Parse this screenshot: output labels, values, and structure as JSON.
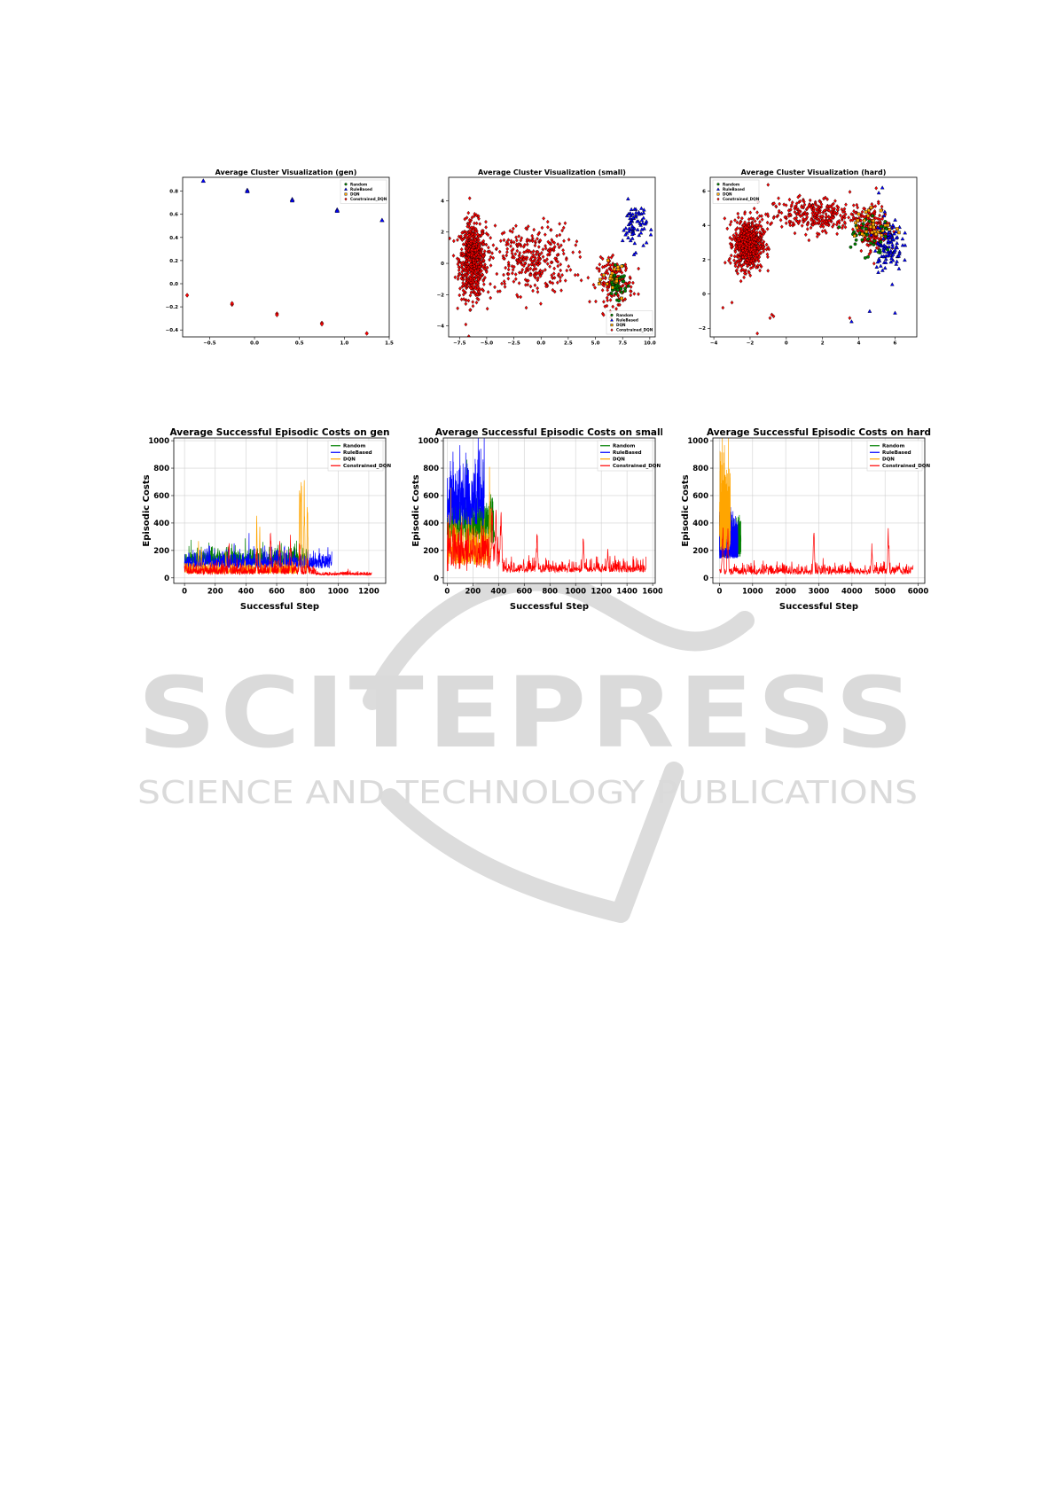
{
  "watermark": {
    "main": "SCITEPRESS",
    "sub": "SCIENCE AND TECHNOLOGY PUBLICATIONS",
    "color": "#d8d8d8"
  },
  "colors": {
    "Random": "#008000",
    "RuleBased": "#0000ff",
    "DQN": "#ffa500",
    "Constrained_DQN": "#ff0000"
  },
  "chart_data": [
    {
      "type": "scatter",
      "title": "Average Cluster Visualization (gen)",
      "xlim": [
        -0.8,
        1.5
      ],
      "ylim": [
        -0.46,
        0.92
      ],
      "xticks": [
        -0.5,
        0.0,
        0.5,
        1.0,
        1.5
      ],
      "xtick_labels": [
        "−0.5",
        "0.0",
        "0.5",
        "1.0",
        "1.5"
      ],
      "yticks": [
        -0.4,
        -0.2,
        0.0,
        0.2,
        0.4,
        0.6,
        0.8
      ],
      "ytick_labels": [
        "−0.4",
        "−0.2",
        "0.0",
        "0.2",
        "0.4",
        "0.6",
        "0.8"
      ],
      "legend": {
        "position": "top-right",
        "entries": [
          "Random",
          "RuleBased",
          "DQN",
          "Constrained_DQN"
        ]
      },
      "series": [
        {
          "name": "RuleBased",
          "marker": "triangle",
          "points": [
            [
              -0.57,
              0.89
            ],
            [
              -0.08,
              0.81
            ],
            [
              -0.08,
              0.8
            ],
            [
              0.42,
              0.73
            ],
            [
              0.42,
              0.72
            ],
            [
              0.92,
              0.64
            ],
            [
              0.92,
              0.63
            ],
            [
              1.42,
              0.55
            ]
          ]
        },
        {
          "name": "Constrained_DQN",
          "marker": "diamond",
          "points": [
            [
              -0.75,
              -0.1
            ],
            [
              -0.25,
              -0.18
            ],
            [
              -0.25,
              -0.17
            ],
            [
              0.25,
              -0.26
            ],
            [
              0.25,
              -0.27
            ],
            [
              0.75,
              -0.34
            ],
            [
              0.75,
              -0.35
            ],
            [
              1.25,
              -0.43
            ]
          ]
        }
      ]
    },
    {
      "type": "scatter",
      "title": "Average Cluster Visualization (small)",
      "xlim": [
        -8.5,
        10.5
      ],
      "ylim": [
        -4.7,
        5.5
      ],
      "xticks": [
        -7.5,
        -5.0,
        -2.5,
        0.0,
        2.5,
        5.0,
        7.5,
        10.0
      ],
      "xtick_labels": [
        "−7.5",
        "−5.0",
        "−2.5",
        "0.0",
        "2.5",
        "5.0",
        "7.5",
        "10.0"
      ],
      "yticks": [
        -4,
        -2,
        0,
        2,
        4
      ],
      "ytick_labels": [
        "−4",
        "−2",
        "0",
        "2",
        "4"
      ],
      "legend": {
        "position": "bottom-right",
        "entries": [
          "Random",
          "RuleBased",
          "DQN",
          "Constrained_DQN"
        ]
      },
      "clusters": [
        {
          "series": "Constrained_DQN",
          "center": [
            -6.3,
            0.2
          ],
          "spread": [
            1.1,
            2.2
          ],
          "count": 650
        },
        {
          "series": "Constrained_DQN",
          "center": [
            -1.0,
            0.3
          ],
          "spread": [
            3.5,
            2.0
          ],
          "count": 320
        },
        {
          "series": "Constrained_DQN",
          "center": [
            6.8,
            -1.2
          ],
          "spread": [
            1.5,
            1.3
          ],
          "count": 180
        },
        {
          "series": "RuleBased",
          "center": [
            8.6,
            2.4
          ],
          "spread": [
            1.0,
            1.4
          ],
          "count": 70
        },
        {
          "series": "Random",
          "center": [
            7.0,
            -1.3
          ],
          "spread": [
            0.8,
            0.8
          ],
          "count": 40
        },
        {
          "series": "DQN",
          "center": [
            6.8,
            -1.0
          ],
          "spread": [
            1.0,
            0.9
          ],
          "count": 20
        }
      ]
    },
    {
      "type": "scatter",
      "title": "Average Cluster Visualization (hard)",
      "xlim": [
        -4.2,
        7.2
      ],
      "ylim": [
        -2.5,
        6.8
      ],
      "xticks": [
        -4,
        -2,
        0,
        2,
        4,
        6
      ],
      "xtick_labels": [
        "−4",
        "−2",
        "0",
        "2",
        "4",
        "6"
      ],
      "yticks": [
        -2,
        0,
        2,
        4,
        6
      ],
      "ytick_labels": [
        "−2",
        "0",
        "2",
        "4",
        "6"
      ],
      "legend": {
        "position": "top-left",
        "entries": [
          "Random",
          "RuleBased",
          "DQN",
          "Constrained_DQN"
        ]
      },
      "clusters": [
        {
          "series": "Constrained_DQN",
          "center": [
            -2.1,
            2.9
          ],
          "spread": [
            0.7,
            1.3
          ],
          "count": 700
        },
        {
          "series": "Constrained_DQN",
          "center": [
            1.5,
            4.6
          ],
          "spread": [
            2.3,
            0.9
          ],
          "count": 300
        },
        {
          "series": "Constrained_DQN",
          "center": [
            4.8,
            3.8
          ],
          "spread": [
            0.8,
            1.2
          ],
          "count": 200
        },
        {
          "series": "RuleBased",
          "center": [
            5.6,
            2.9
          ],
          "spread": [
            0.7,
            1.4
          ],
          "count": 110
        },
        {
          "series": "Random",
          "center": [
            4.5,
            3.5
          ],
          "spread": [
            1.2,
            1.3
          ],
          "count": 40
        },
        {
          "series": "DQN",
          "center": [
            4.8,
            3.9
          ],
          "spread": [
            1.0,
            1.0
          ],
          "count": 30
        }
      ],
      "points": [
        {
          "series": "Constrained_DQN",
          "xy": [
            [
              -0.8,
              -1.2
            ],
            [
              -0.9,
              -1.4
            ],
            [
              -0.7,
              -1.3
            ],
            [
              -1.6,
              -2.3
            ],
            [
              -3.0,
              -0.5
            ],
            [
              -3.5,
              -0.8
            ],
            [
              3.5,
              -1.4
            ]
          ]
        },
        {
          "series": "RuleBased",
          "xy": [
            [
              3.6,
              -1.6
            ],
            [
              4.6,
              -1.0
            ],
            [
              6.0,
              -1.1
            ],
            [
              5.3,
              6.2
            ],
            [
              5.1,
              5.9
            ]
          ]
        }
      ]
    },
    {
      "type": "line",
      "title": "Average Successful Episodic Costs on gen",
      "xlabel": "Successful Step",
      "ylabel": "Episodic Costs",
      "xlim": [
        -70,
        1310
      ],
      "ylim": [
        -40,
        1020
      ],
      "xticks": [
        0,
        200,
        400,
        600,
        800,
        1000,
        1200
      ],
      "xtick_labels": [
        "0",
        "200",
        "400",
        "600",
        "800",
        "1000",
        "1200"
      ],
      "yticks": [
        0,
        200,
        400,
        600,
        800,
        1000
      ],
      "ytick_labels": [
        "0",
        "200",
        "400",
        "600",
        "800",
        "1000"
      ],
      "legend": {
        "position": "top-right",
        "entries": [
          "Random",
          "RuleBased",
          "DQN",
          "Constrained_DQN"
        ]
      },
      "series": [
        {
          "name": "Random",
          "n": 800,
          "base": 90,
          "noise": 100,
          "peaks": [
            [
              50,
              170
            ],
            [
              300,
              210
            ],
            [
              420,
              200
            ],
            [
              560,
              190
            ],
            [
              700,
              150
            ]
          ]
        },
        {
          "name": "RuleBased",
          "n": 960,
          "base": 70,
          "noise": 100,
          "peaks": [
            [
              150,
              200
            ],
            [
              450,
              220
            ],
            [
              600,
              240
            ],
            [
              750,
              230
            ],
            [
              950,
              180
            ]
          ]
        },
        {
          "name": "DQN",
          "n": 810,
          "base": 30,
          "noise": 60,
          "peaks": [
            [
              90,
              320
            ],
            [
              110,
              300
            ],
            [
              270,
              250
            ],
            [
              470,
              470
            ],
            [
              490,
              380
            ],
            [
              750,
              840
            ],
            [
              760,
              1000
            ],
            [
              780,
              870
            ],
            [
              800,
              750
            ]
          ]
        },
        {
          "name": "Constrained_DQN",
          "n": 1220,
          "base": 25,
          "noise": 60,
          "peaks": [
            [
              10,
              140
            ],
            [
              290,
              330
            ],
            [
              470,
              270
            ],
            [
              560,
              400
            ],
            [
              620,
              360
            ],
            [
              690,
              350
            ],
            [
              750,
              300
            ],
            [
              800,
              180
            ]
          ],
          "tail": 20
        }
      ]
    },
    {
      "type": "line",
      "title": "Average Successful Episodic Costs on small",
      "xlabel": "Successful Step",
      "ylabel": "Episodic Costs",
      "xlim": [
        -30,
        1620
      ],
      "ylim": [
        -40,
        1020
      ],
      "xticks": [
        0,
        200,
        400,
        600,
        800,
        1000,
        1200,
        1400,
        1600
      ],
      "xtick_labels": [
        "0",
        "200",
        "400",
        "600",
        "800",
        "1000",
        "1200",
        "1400",
        "1600"
      ],
      "yticks": [
        0,
        200,
        400,
        600,
        800,
        1000
      ],
      "ytick_labels": [
        "0",
        "200",
        "400",
        "600",
        "800",
        "1000"
      ],
      "legend": {
        "position": "top-right",
        "entries": [
          "Random",
          "RuleBased",
          "DQN",
          "Constrained_DQN"
        ]
      },
      "series": [
        {
          "name": "Random",
          "n": 370,
          "base": 250,
          "noise": 300,
          "peaks": [
            [
              300,
              560
            ],
            [
              280,
              500
            ]
          ]
        },
        {
          "name": "RuleBased",
          "n": 290,
          "base": 380,
          "noise": 380,
          "peaks": [
            [
              100,
              830
            ],
            [
              140,
              800
            ],
            [
              60,
              740
            ]
          ]
        },
        {
          "name": "DQN",
          "n": 340,
          "base": 90,
          "noise": 250,
          "peaks": [
            [
              330,
              1000
            ],
            [
              340,
              820
            ],
            [
              20,
              500
            ]
          ]
        },
        {
          "name": "Constrained_DQN",
          "n": 1550,
          "base": 40,
          "noise": 70,
          "peaks": [
            [
              350,
              640
            ],
            [
              420,
              680
            ],
            [
              380,
              600
            ],
            [
              700,
              420
            ],
            [
              1060,
              350
            ],
            [
              1250,
              230
            ]
          ],
          "early": [
            [
              0,
              420,
              200
            ]
          ]
        }
      ]
    },
    {
      "type": "line",
      "title": "Average Successful Episodic Costs on hard",
      "xlabel": "Successful Step",
      "ylabel": "Episodic Costs",
      "xlim": [
        -200,
        6200
      ],
      "ylim": [
        -40,
        1020
      ],
      "xticks": [
        0,
        1000,
        2000,
        3000,
        4000,
        5000,
        6000
      ],
      "xtick_labels": [
        "0",
        "1000",
        "2000",
        "3000",
        "4000",
        "5000",
        "6000"
      ],
      "yticks": [
        0,
        200,
        400,
        600,
        800,
        1000
      ],
      "ytick_labels": [
        "0",
        "200",
        "400",
        "600",
        "800",
        "1000"
      ],
      "legend": {
        "position": "top-right",
        "entries": [
          "Random",
          "RuleBased",
          "DQN",
          "Constrained_DQN"
        ]
      },
      "series": [
        {
          "name": "Random",
          "n": 650,
          "base": 150,
          "noise": 200,
          "peaks": [
            [
              350,
              500
            ],
            [
              650,
              350
            ]
          ]
        },
        {
          "name": "RuleBased",
          "n": 560,
          "base": 140,
          "noise": 230,
          "peaks": [
            [
              300,
              430
            ],
            [
              500,
              380
            ]
          ]
        },
        {
          "name": "DQN",
          "n": 330,
          "base": 200,
          "noise": 450,
          "peaks": [
            [
              120,
              1000
            ],
            [
              150,
              980
            ],
            [
              200,
              900
            ]
          ]
        },
        {
          "name": "Constrained_DQN",
          "n": 5850,
          "base": 25,
          "noise": 60,
          "peaks": [
            [
              100,
              460
            ],
            [
              250,
              420
            ],
            [
              2850,
              420
            ],
            [
              4600,
              270
            ],
            [
              5100,
              400
            ],
            [
              5800,
              110
            ]
          ]
        }
      ]
    }
  ]
}
